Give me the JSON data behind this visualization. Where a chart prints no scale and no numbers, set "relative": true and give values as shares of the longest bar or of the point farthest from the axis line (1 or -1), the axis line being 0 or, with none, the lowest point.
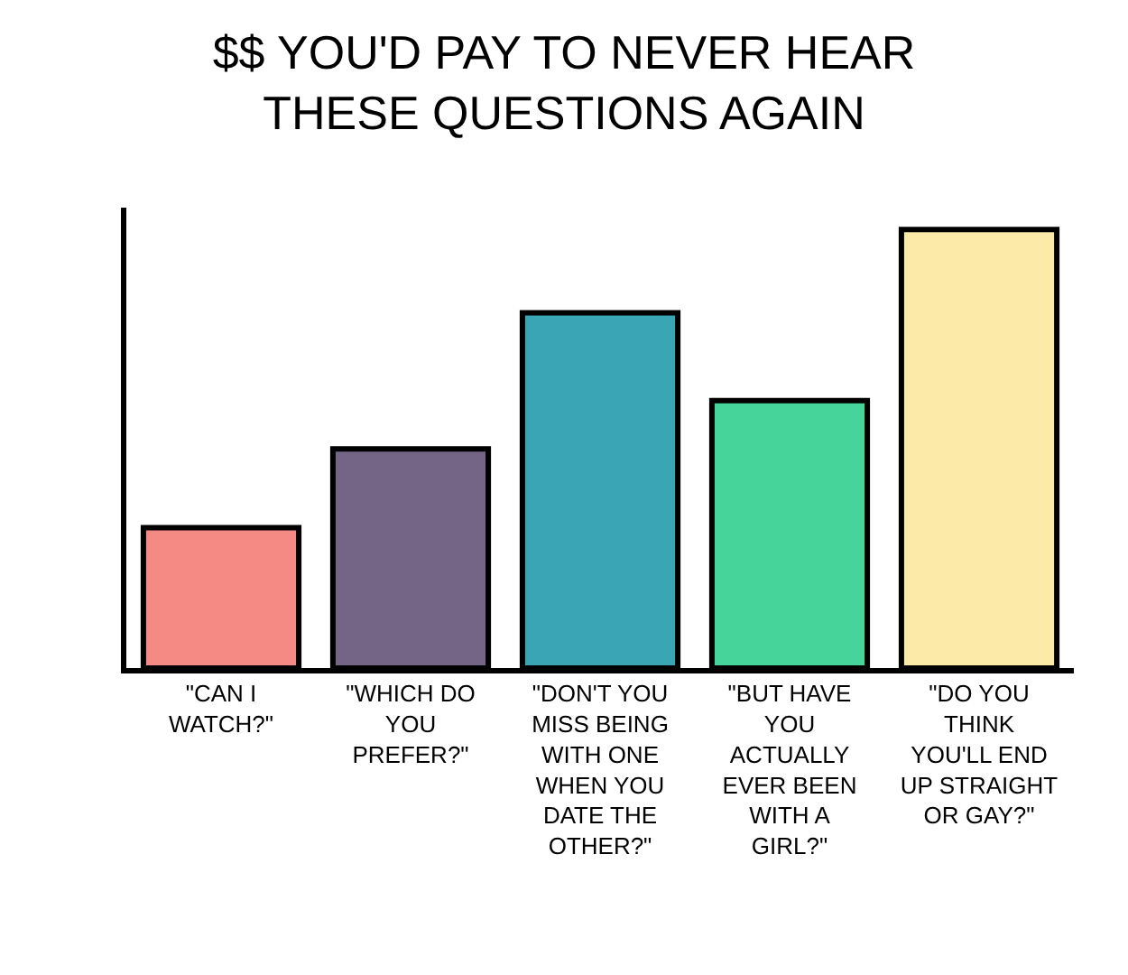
{
  "chart_data": {
    "type": "bar",
    "title": "$$ YOU'D PAY TO NEVER HEAR THESE QUESTIONS AGAIN",
    "relative": true,
    "categories": [
      "\"CAN I WATCH?\"",
      "\"WHICH DO YOU PREFER?\"",
      "\"DON'T YOU MISS BEING WITH ONE WHEN YOU DATE THE OTHER?\"",
      "\"BUT HAVE YOU ACTUALLY EVER BEEN WITH A GIRL?\"",
      "\"DO YOU THINK YOU'LL END UP STRAIGHT OR GAY?\""
    ],
    "values": [
      0.32,
      0.5,
      0.81,
      0.61,
      1
    ],
    "colors": [
      "#f58a84",
      "#746587",
      "#3aa5b4",
      "#46d49a",
      "#fbeaa8"
    ],
    "legend": false
  }
}
